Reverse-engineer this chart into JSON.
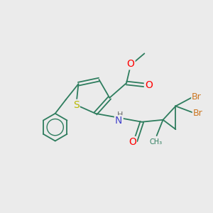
{
  "background_color": "#ebebeb",
  "atom_colors": {
    "C": "#2e7d5e",
    "O": "#ff0000",
    "N": "#4444cc",
    "S": "#b8b800",
    "Br": "#cc7722",
    "H": "#666666"
  },
  "bond_color": "#2e7d5e",
  "figsize": [
    3.0,
    3.0
  ],
  "dpi": 100
}
